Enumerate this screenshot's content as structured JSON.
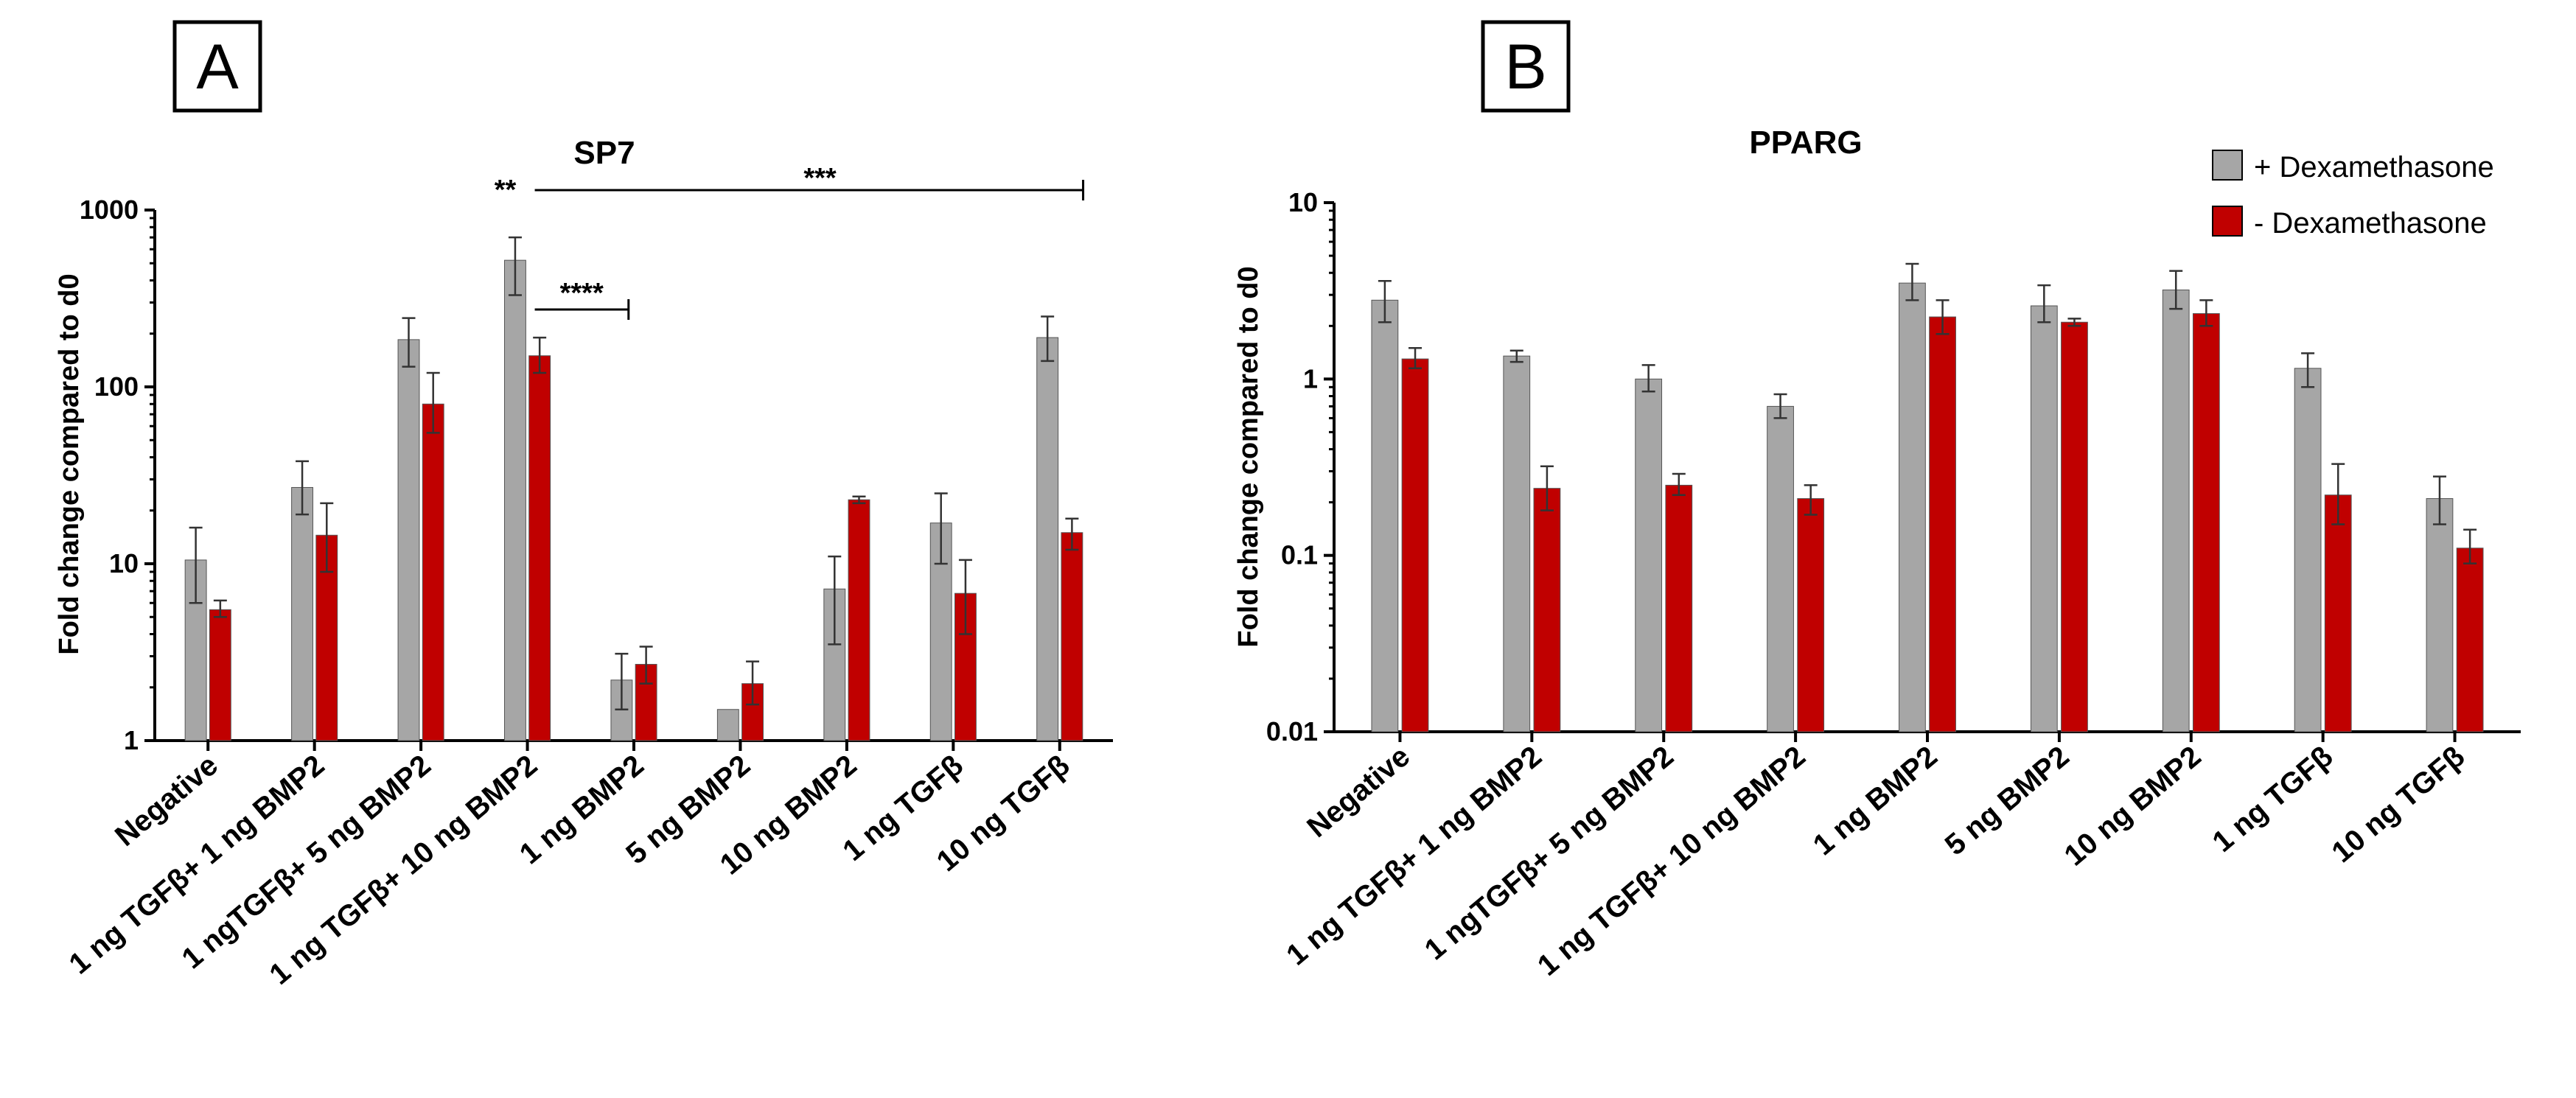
{
  "legend": {
    "items": [
      {
        "label": "+ Dexamethasone",
        "color": "#a6a6a6"
      },
      {
        "label": "- Dexamethasone",
        "color": "#c00000"
      }
    ]
  },
  "colors": {
    "plus_dex": "#a6a6a6",
    "minus_dex": "#c00000",
    "sig_red": "#e0302a",
    "axis": "#000000"
  },
  "chart_data": [
    {
      "id": "A",
      "panel_label": "A",
      "type": "bar",
      "scale": "log",
      "title": "SP7",
      "ylabel": "Fold change compared to d0",
      "ylim": [
        1,
        1000
      ],
      "yticks": [
        1,
        10,
        100,
        1000
      ],
      "ytick_labels": [
        "1",
        "10",
        "100",
        "1000"
      ],
      "categories": [
        "Negative",
        "1 ng TGFβ+ 1 ng BMP2",
        "1 ngTGFβ+ 5 ng BMP2",
        "1 ng TGFβ+ 10 ng BMP2",
        "1 ng BMP2",
        "5 ng BMP2",
        "10 ng BMP2",
        "1 ng TGFβ",
        "10 ng TGFβ"
      ],
      "series": [
        {
          "name": "+ Dexamethasone",
          "values": [
            10.5,
            27,
            185,
            520,
            2.2,
            1.5,
            7.2,
            17,
            190
          ],
          "errors_hi": [
            16,
            38,
            245,
            700,
            3.1,
            1.5,
            11,
            25,
            250
          ],
          "errors_lo": [
            6,
            19,
            130,
            330,
            1.5,
            1.5,
            3.5,
            10,
            140
          ]
        },
        {
          "name": "- Dexamethasone",
          "values": [
            5.5,
            14.5,
            80,
            150,
            2.7,
            2.1,
            23,
            6.8,
            15
          ],
          "errors_hi": [
            6.2,
            22,
            120,
            190,
            3.4,
            2.8,
            24,
            10.5,
            18
          ],
          "errors_lo": [
            5.0,
            9,
            55,
            120,
            2.1,
            1.6,
            22,
            4,
            12
          ]
        }
      ],
      "annotations": [
        {
          "text": "**",
          "color": "#e0302a",
          "from_category": 3,
          "to_category": 3
        },
        {
          "text": "***",
          "color": "#000000",
          "from_category": 3,
          "to_category": 8
        },
        {
          "text": "****",
          "color": "#000000",
          "from_category": 3,
          "to_category": 4
        }
      ]
    },
    {
      "id": "B",
      "panel_label": "B",
      "type": "bar",
      "scale": "log",
      "title": "PPARG",
      "ylabel": "Fold change compared to d0",
      "ylim": [
        0.01,
        10
      ],
      "yticks": [
        0.01,
        0.1,
        1,
        10
      ],
      "ytick_labels": [
        "0.01",
        "0.1",
        "1",
        "10"
      ],
      "categories": [
        "Negative",
        "1 ng TGFβ+ 1 ng BMP2",
        "1 ngTGFβ+ 5 ng BMP2",
        "1 ng TGFβ+ 10 ng BMP2",
        "1 ng BMP2",
        "5 ng BMP2",
        "10 ng BMP2",
        "1 ng TGFβ",
        "10 ng TGFβ"
      ],
      "series": [
        {
          "name": "+ Dexamethasone",
          "values": [
            2.8,
            1.35,
            1.0,
            0.7,
            3.5,
            2.6,
            3.2,
            1.15,
            0.21
          ],
          "errors_hi": [
            3.6,
            1.45,
            1.2,
            0.82,
            4.5,
            3.4,
            4.1,
            1.4,
            0.28
          ],
          "errors_lo": [
            2.1,
            1.25,
            0.85,
            0.6,
            2.8,
            2.1,
            2.5,
            0.9,
            0.15
          ]
        },
        {
          "name": "- Dexamethasone",
          "values": [
            1.3,
            0.24,
            0.25,
            0.21,
            2.25,
            2.1,
            2.35,
            0.22,
            0.11
          ],
          "errors_hi": [
            1.5,
            0.32,
            0.29,
            0.25,
            2.8,
            2.2,
            2.8,
            0.33,
            0.14
          ],
          "errors_lo": [
            1.15,
            0.18,
            0.22,
            0.17,
            1.8,
            2.0,
            2.0,
            0.15,
            0.09
          ]
        }
      ],
      "annotations": []
    }
  ]
}
